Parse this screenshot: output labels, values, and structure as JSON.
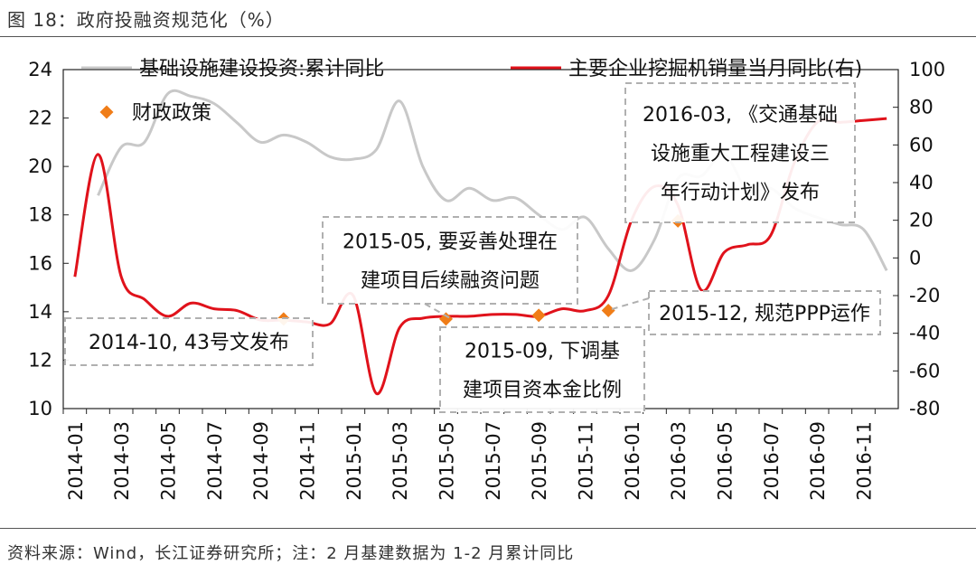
{
  "header": {
    "title": "图 18：政府投融资规范化（%）"
  },
  "footer": {
    "source": "资料来源：Wind，长江证券研究所；注：2 月基建数据为 1-2 月累计同比"
  },
  "chart_data": {
    "type": "line",
    "colors": {
      "left_series": "#c8c8c8",
      "right_series": "#e0121b",
      "policy_marker": "#f07d18",
      "annotation_border": "#b0b0b0"
    },
    "x_categories": [
      "2014-01",
      "2014-02",
      "2014-03",
      "2014-04",
      "2014-05",
      "2014-06",
      "2014-07",
      "2014-08",
      "2014-09",
      "2014-10",
      "2014-11",
      "2014-12",
      "2015-01",
      "2015-02",
      "2015-03",
      "2015-04",
      "2015-05",
      "2015-06",
      "2015-07",
      "2015-08",
      "2015-09",
      "2015-10",
      "2015-11",
      "2015-12",
      "2016-01",
      "2016-02",
      "2016-03",
      "2016-04",
      "2016-05",
      "2016-06",
      "2016-07",
      "2016-08",
      "2016-09",
      "2016-10",
      "2016-11",
      "2016-12"
    ],
    "x_tick_labels": [
      "2014-01",
      "2014-03",
      "2014-05",
      "2014-07",
      "2014-09",
      "2014-11",
      "2015-01",
      "2015-03",
      "2015-05",
      "2015-07",
      "2015-09",
      "2015-11",
      "2016-01",
      "2016-03",
      "2016-05",
      "2016-07",
      "2016-09",
      "2016-11"
    ],
    "y_left": {
      "min": 10,
      "max": 24,
      "ticks": [
        10,
        12,
        14,
        16,
        18,
        20,
        22,
        24
      ]
    },
    "y_right": {
      "min": -80,
      "max": 100,
      "ticks": [
        -80,
        -60,
        -40,
        -20,
        0,
        20,
        40,
        60,
        80,
        100
      ]
    },
    "series": [
      {
        "name": "基础设施建设投资:累计同比",
        "axis": "left",
        "points": [
          [
            1,
            18.8
          ],
          [
            2,
            20.8
          ],
          [
            3,
            21.0
          ],
          [
            4,
            23.0
          ],
          [
            5,
            22.9
          ],
          [
            6,
            22.6
          ],
          [
            7,
            21.8
          ],
          [
            8,
            21.0
          ],
          [
            9,
            21.3
          ],
          [
            10,
            21.0
          ],
          [
            11,
            20.4
          ],
          [
            12,
            20.3
          ],
          [
            13,
            20.7
          ],
          [
            14,
            22.7
          ],
          [
            15,
            20.0
          ],
          [
            16,
            18.6
          ],
          [
            17,
            19.1
          ],
          [
            18,
            18.6
          ],
          [
            19,
            18.7
          ],
          [
            20,
            18.0
          ],
          [
            21,
            17.4
          ],
          [
            22,
            17.9
          ],
          [
            23,
            16.6
          ],
          [
            24,
            15.7
          ],
          [
            25,
            17.0
          ],
          [
            26,
            19.5
          ],
          [
            27,
            19.6
          ],
          [
            28,
            20.5
          ],
          [
            29,
            19.0
          ],
          [
            30,
            19.1
          ],
          [
            31,
            18.3
          ],
          [
            32,
            17.9
          ],
          [
            33,
            17.6
          ],
          [
            34,
            17.4
          ],
          [
            35,
            15.7
          ]
        ]
      },
      {
        "name": "主要企业挖掘机销量当月同比(右)",
        "axis": "right",
        "points": [
          [
            0,
            -10
          ],
          [
            1,
            55
          ],
          [
            2,
            -10
          ],
          [
            3,
            -22
          ],
          [
            4,
            -31
          ],
          [
            5,
            -24
          ],
          [
            6,
            -27
          ],
          [
            7,
            -28
          ],
          [
            8,
            -33
          ],
          [
            9,
            -33
          ],
          [
            10,
            -34
          ],
          [
            11,
            -35
          ],
          [
            12,
            -20
          ],
          [
            13,
            -72
          ],
          [
            14,
            -37
          ],
          [
            15,
            -32
          ],
          [
            16,
            -31
          ],
          [
            17,
            -31
          ],
          [
            18,
            -30
          ],
          [
            19,
            -30
          ],
          [
            20,
            -31
          ],
          [
            21,
            -27
          ],
          [
            22,
            -28
          ],
          [
            23,
            -20
          ],
          [
            24,
            20
          ],
          [
            25,
            38
          ],
          [
            26,
            28
          ],
          [
            27,
            -17
          ],
          [
            28,
            3
          ],
          [
            29,
            7
          ],
          [
            30,
            12
          ],
          [
            31,
            50
          ],
          [
            32,
            72
          ],
          [
            33,
            72
          ],
          [
            34,
            73
          ],
          [
            35,
            74
          ]
        ]
      }
    ],
    "legend": [
      {
        "label": "基础设施建设投资:累计同比",
        "kind": "line",
        "color": "#c8c8c8"
      },
      {
        "label": "主要企业挖掘机销量当月同比(右)",
        "kind": "line",
        "color": "#e0121b"
      },
      {
        "label": "财政政策",
        "kind": "diamond",
        "color": "#f07d18"
      }
    ],
    "markers": [
      {
        "x": "2014-10",
        "y_left": 13.7
      },
      {
        "x": "2015-05",
        "y_left": 13.7
      },
      {
        "x": "2015-09",
        "y_left": 13.85
      },
      {
        "x": "2015-12",
        "y_left": 14.05
      },
      {
        "x": "2016-03",
        "y_left": 17.75
      }
    ],
    "annotations": [
      {
        "lines": [
          "2014-10, 43号文发布"
        ]
      },
      {
        "lines": [
          "2015-05, 要妥善处理在",
          "建项目后续融资问题"
        ]
      },
      {
        "lines": [
          "2015-09, 下调基",
          "建项目资本金比例"
        ]
      },
      {
        "lines": [
          "2015-12, 规范PPP运作"
        ]
      },
      {
        "lines": [
          "2016-03, 《交通基础",
          "设施重大工程建设三",
          "年行动计划》发布"
        ]
      }
    ]
  }
}
